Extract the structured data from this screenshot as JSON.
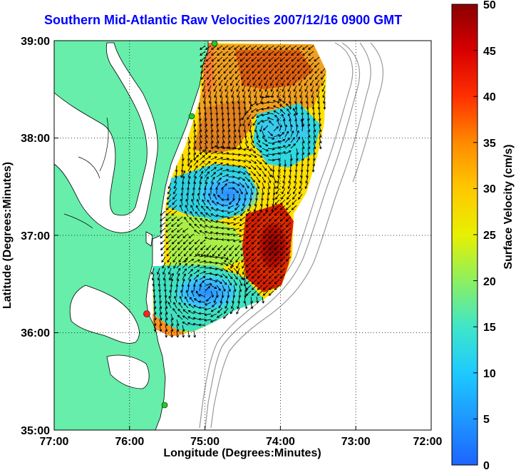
{
  "title": "Southern Mid-Atlantic Raw Velocities 2007/12/16 0900 GMT",
  "xlabel": "Longitude (Degrees:Minutes)",
  "ylabel": "Latitude (Degrees:Minutes)",
  "x_ticks": [
    "77:00",
    "76:00",
    "75:00",
    "74:00",
    "73:00",
    "72:00"
  ],
  "y_ticks": [
    "39:00",
    "38:00",
    "37:00",
    "36:00",
    "35:00"
  ],
  "colorbar": {
    "label": "Surface Velocity (cm/s)",
    "ticks": [
      "0",
      "5",
      "10",
      "15",
      "20",
      "25",
      "30",
      "35",
      "40",
      "45",
      "50"
    ],
    "range": [
      0,
      50
    ]
  },
  "colors": {
    "land": "#66eeaa",
    "title": "#0000ff",
    "vector": "#000000",
    "station": "#22cc22",
    "station_highlight": "#ff2222",
    "bathymetry": "#999999"
  },
  "grid": "dotted"
}
